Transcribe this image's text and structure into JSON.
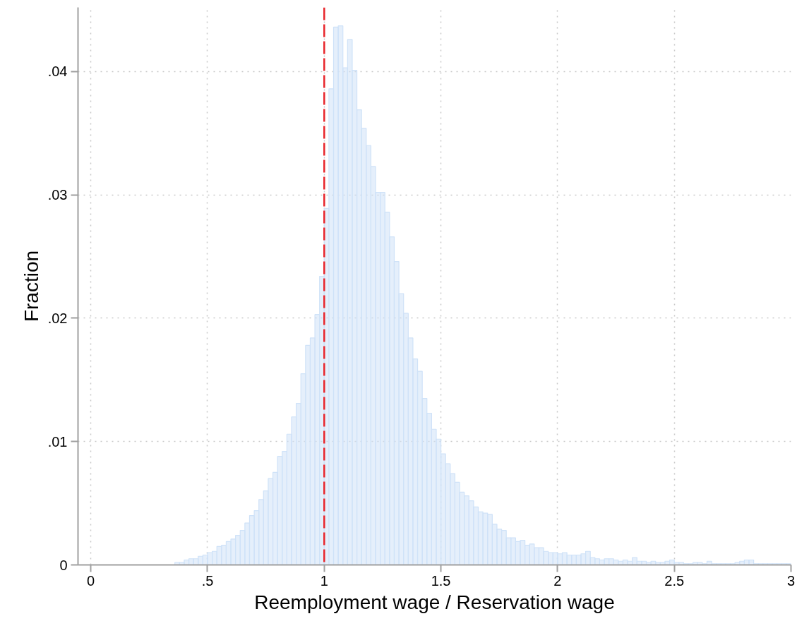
{
  "chart_data": {
    "type": "histogram",
    "xlabel": "Reemployment wage / Reservation wage",
    "ylabel": "Fraction",
    "color": "#cfe2f8",
    "bins": [
      0.36,
      0.38,
      0.4,
      0.42,
      0.44,
      0.46,
      0.48,
      0.5,
      0.52,
      0.54,
      0.56,
      0.58,
      0.6,
      0.62,
      0.64,
      0.66,
      0.68,
      0.7,
      0.72,
      0.74,
      0.76,
      0.78,
      0.8,
      0.82,
      0.84,
      0.86,
      0.88,
      0.9,
      0.92,
      0.94,
      0.96,
      0.98,
      1.0,
      1.02,
      1.04,
      1.06,
      1.08,
      1.1,
      1.12,
      1.14,
      1.16,
      1.18,
      1.2,
      1.22,
      1.24,
      1.26,
      1.28,
      1.3,
      1.32,
      1.34,
      1.36,
      1.38,
      1.4,
      1.42,
      1.44,
      1.46,
      1.48,
      1.5,
      1.52,
      1.54,
      1.56,
      1.58,
      1.6,
      1.62,
      1.64,
      1.66,
      1.68,
      1.7,
      1.72,
      1.74,
      1.76,
      1.78,
      1.8,
      1.82,
      1.84,
      1.86,
      1.88,
      1.9,
      1.92,
      1.94,
      1.96,
      1.98,
      2.0,
      2.02,
      2.04,
      2.06,
      2.08,
      2.1,
      2.12,
      2.14,
      2.16,
      2.18,
      2.2,
      2.22,
      2.24,
      2.26,
      2.28,
      2.3,
      2.32,
      2.34,
      2.36,
      2.38,
      2.4,
      2.42,
      2.44,
      2.46,
      2.48,
      2.5,
      2.52,
      2.54,
      2.56,
      2.58,
      2.6,
      2.62,
      2.64,
      2.66,
      2.68,
      2.7,
      2.72,
      2.74,
      2.76,
      2.78,
      2.8,
      2.82,
      2.84,
      2.86,
      2.88,
      2.9,
      2.92,
      2.94,
      2.96,
      2.98,
      3.0
    ],
    "values": [
      0.0002,
      0.0002,
      0.0004,
      0.0005,
      0.0005,
      0.0007,
      0.0008,
      0.001,
      0.0011,
      0.0015,
      0.0016,
      0.0019,
      0.0021,
      0.0024,
      0.0028,
      0.0034,
      0.004,
      0.0044,
      0.0053,
      0.006,
      0.007,
      0.0075,
      0.0088,
      0.0092,
      0.0106,
      0.012,
      0.0131,
      0.0155,
      0.0178,
      0.0184,
      0.0203,
      0.0234,
      0.0289,
      0.0386,
      0.0436,
      0.0437,
      0.0403,
      0.0426,
      0.0401,
      0.0369,
      0.0354,
      0.034,
      0.0323,
      0.0302,
      0.0302,
      0.0286,
      0.0266,
      0.0246,
      0.022,
      0.0204,
      0.0184,
      0.0167,
      0.0157,
      0.0135,
      0.0123,
      0.011,
      0.0102,
      0.009,
      0.0082,
      0.0074,
      0.0067,
      0.0059,
      0.0056,
      0.0052,
      0.0047,
      0.0043,
      0.0042,
      0.0041,
      0.0033,
      0.0029,
      0.0028,
      0.0022,
      0.0022,
      0.0019,
      0.002,
      0.0016,
      0.0017,
      0.0014,
      0.0014,
      0.0011,
      0.001,
      0.001,
      0.0009,
      0.001,
      0.0008,
      0.0008,
      0.0008,
      0.0009,
      0.0011,
      0.0006,
      0.0005,
      0.0004,
      0.0005,
      0.0005,
      0.0004,
      0.0003,
      0.0004,
      0.0003,
      0.0006,
      0.0003,
      0.0003,
      0.0002,
      0.0003,
      0.0002,
      0.0002,
      0.0003,
      0.0004,
      0.0002,
      0.0002,
      0.0001,
      0.0001,
      0.0002,
      0.0002,
      0.0001,
      0.0003,
      0.0001,
      0.0001,
      0.0001,
      0.0001,
      0.0001,
      0.0002,
      0.0003,
      0.0004,
      0.0004,
      0.0001,
      0.0001,
      0.0001,
      0.0001,
      0.0001,
      0.0001,
      0.0001,
      0.0001
    ],
    "xlim": [
      -0.055,
      3.0
    ],
    "ylim": [
      0,
      0.0452
    ],
    "xticks": [
      0,
      {
        "value": 0.5,
        "label": ".5"
      },
      1,
      {
        "value": 1.5,
        "label": "1.5"
      },
      2,
      {
        "value": 2.5,
        "label": "2.5"
      },
      3
    ],
    "yticks": [
      0,
      {
        "value": 0.01,
        "label": ".01"
      },
      {
        "value": 0.02,
        "label": ".02"
      },
      {
        "value": 0.03,
        "label": ".03"
      },
      {
        "value": 0.04,
        "label": ".04"
      }
    ],
    "ref_lines": [
      {
        "axis": "x",
        "value": 1,
        "label": null,
        "color": "#e8262c",
        "line_style": "dashed"
      }
    ],
    "grid": true
  }
}
